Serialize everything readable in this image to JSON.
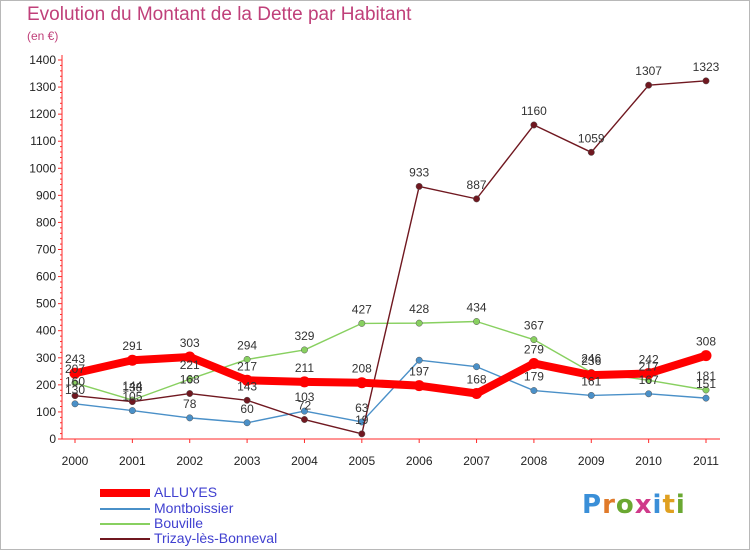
{
  "header": {
    "title": "Evolution du Montant de la Dette par Habitant",
    "unit": "(en €)"
  },
  "brand": {
    "letters": [
      "P",
      "r",
      "o",
      "x",
      "i",
      "t",
      "i"
    ],
    "colors": [
      "#3a8fd8",
      "#e07a2a",
      "#6aa832",
      "#d03a8a",
      "#3a8fd8",
      "#e0a020",
      "#6aa832"
    ]
  },
  "chart_data": {
    "type": "line",
    "title": "Evolution du Montant de la Dette par Habitant",
    "ylabel": "(en €)",
    "xlabel": "",
    "ylim": [
      0,
      1400
    ],
    "yticks": [
      0,
      100,
      200,
      300,
      400,
      500,
      600,
      700,
      800,
      900,
      1000,
      1100,
      1200,
      1300,
      1400
    ],
    "x": [
      "2000",
      "2001",
      "2002",
      "2003",
      "2004",
      "2005",
      "2006",
      "2007",
      "2008",
      "2009",
      "2010",
      "2011"
    ],
    "grid": false,
    "legend_position": "bottom-left",
    "series": [
      {
        "name": "ALLUYES",
        "color": "#ff0000",
        "values": [
          243,
          291,
          303,
          217,
          211,
          208,
          197,
          168,
          279,
          236,
          242,
          308
        ]
      },
      {
        "name": "Montboissier",
        "color": "#4a90c8",
        "values": [
          130,
          105,
          78,
          60,
          103,
          63,
          291,
          267,
          179,
          161,
          167,
          151
        ]
      },
      {
        "name": "Bouville",
        "color": "#88d060",
        "values": [
          207,
          144,
          221,
          294,
          329,
          427,
          428,
          434,
          367,
          246,
          217,
          181
        ]
      },
      {
        "name": "Trizay-lès-Bonneval",
        "color": "#701820",
        "values": [
          160,
          138,
          168,
          143,
          72,
          19,
          933,
          887,
          1160,
          1059,
          1307,
          1323
        ]
      }
    ],
    "point_labels": [
      {
        "series": "ALLUYES",
        "values": [
          243,
          291,
          303,
          217,
          211,
          208,
          197,
          168,
          279,
          236,
          242,
          308
        ]
      },
      {
        "series": "Montboissier",
        "values": [
          130,
          105,
          78,
          60,
          103,
          63,
          null,
          null,
          179,
          161,
          167,
          151
        ]
      },
      {
        "series": "Bouville",
        "values": [
          207,
          144,
          221,
          294,
          329,
          427,
          428,
          434,
          367,
          246,
          217,
          181
        ]
      },
      {
        "series": "Trizay-lès-Bonneval",
        "values": [
          160,
          138,
          168,
          143,
          72,
          19,
          933,
          887,
          1160,
          1059,
          1307,
          1323
        ]
      }
    ]
  }
}
